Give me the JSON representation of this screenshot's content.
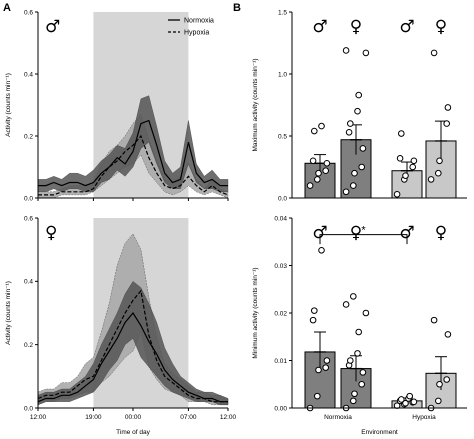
{
  "panel_labels": [
    "A",
    "B"
  ],
  "chart_data": [
    {
      "id": "A-top",
      "type": "line",
      "sex": "♂",
      "xlabel": "",
      "ylabel": "Activity (counts min⁻¹)",
      "xlim": [
        0,
        24
      ],
      "ylim": [
        0,
        0.6
      ],
      "yticks": [
        "0.0",
        "0.2",
        "0.4",
        "0.6"
      ],
      "xticks": [],
      "shaded_period": [
        7,
        19
      ],
      "legend": [
        "Normoxia",
        "Hypoxia"
      ],
      "legend_position": "top-right",
      "x": [
        0,
        1,
        2,
        3,
        4,
        5,
        6,
        7,
        8,
        9,
        10,
        11,
        12,
        13,
        14,
        15,
        16,
        17,
        18,
        19,
        20,
        21,
        22,
        23,
        24
      ],
      "series": [
        {
          "name": "Normoxia",
          "values": [
            0.04,
            0.04,
            0.05,
            0.04,
            0.05,
            0.05,
            0.04,
            0.05,
            0.08,
            0.1,
            0.13,
            0.11,
            0.15,
            0.24,
            0.25,
            0.17,
            0.08,
            0.05,
            0.06,
            0.18,
            0.08,
            0.05,
            0.06,
            0.04,
            0.04
          ],
          "upper": [
            0.06,
            0.06,
            0.07,
            0.06,
            0.08,
            0.08,
            0.07,
            0.09,
            0.12,
            0.14,
            0.17,
            0.16,
            0.21,
            0.32,
            0.33,
            0.23,
            0.12,
            0.08,
            0.1,
            0.25,
            0.11,
            0.07,
            0.09,
            0.06,
            0.06
          ],
          "lower": [
            0.02,
            0.02,
            0.03,
            0.02,
            0.03,
            0.03,
            0.02,
            0.02,
            0.05,
            0.06,
            0.09,
            0.07,
            0.1,
            0.16,
            0.18,
            0.11,
            0.05,
            0.03,
            0.03,
            0.11,
            0.05,
            0.03,
            0.03,
            0.02,
            0.02
          ]
        },
        {
          "name": "Hypoxia",
          "values": [
            0.01,
            0.01,
            0.01,
            0.02,
            0.02,
            0.02,
            0.02,
            0.03,
            0.07,
            0.1,
            0.12,
            0.15,
            0.17,
            0.2,
            0.13,
            0.08,
            0.04,
            0.03,
            0.04,
            0.07,
            0.04,
            0.02,
            0.04,
            0.02,
            0.01
          ],
          "upper": [
            0.02,
            0.02,
            0.02,
            0.03,
            0.04,
            0.04,
            0.04,
            0.05,
            0.11,
            0.15,
            0.17,
            0.2,
            0.24,
            0.27,
            0.19,
            0.12,
            0.06,
            0.05,
            0.07,
            0.11,
            0.06,
            0.03,
            0.06,
            0.03,
            0.02
          ],
          "lower": [
            0.0,
            0.0,
            0.0,
            0.01,
            0.01,
            0.01,
            0.01,
            0.02,
            0.04,
            0.06,
            0.08,
            0.1,
            0.11,
            0.14,
            0.08,
            0.05,
            0.02,
            0.01,
            0.02,
            0.04,
            0.02,
            0.01,
            0.02,
            0.01,
            0.0
          ]
        }
      ]
    },
    {
      "id": "A-bottom",
      "type": "line",
      "sex": "♀",
      "xlabel": "Time of day",
      "ylabel": "Activity (counts min⁻¹)",
      "xlim": [
        0,
        24
      ],
      "ylim": [
        0,
        0.6
      ],
      "yticks": [
        "0.0",
        "0.2",
        "0.4",
        "0.6"
      ],
      "xticks": [
        "12:00",
        "19:00",
        "00:00",
        "07:00",
        "12:00"
      ],
      "xtick_positions": [
        0,
        7,
        12,
        19,
        24
      ],
      "shaded_period": [
        7,
        19
      ],
      "x": [
        0,
        1,
        2,
        3,
        4,
        5,
        6,
        7,
        8,
        9,
        10,
        11,
        12,
        13,
        14,
        15,
        16,
        17,
        18,
        19,
        20,
        21,
        22,
        23,
        24
      ],
      "series": [
        {
          "name": "Normoxia",
          "values": [
            0.02,
            0.03,
            0.03,
            0.04,
            0.04,
            0.05,
            0.07,
            0.09,
            0.14,
            0.18,
            0.22,
            0.27,
            0.3,
            0.26,
            0.21,
            0.17,
            0.12,
            0.09,
            0.07,
            0.05,
            0.04,
            0.03,
            0.03,
            0.02,
            0.02
          ],
          "upper": [
            0.04,
            0.05,
            0.05,
            0.06,
            0.06,
            0.08,
            0.1,
            0.14,
            0.2,
            0.25,
            0.3,
            0.36,
            0.4,
            0.38,
            0.33,
            0.27,
            0.19,
            0.14,
            0.1,
            0.08,
            0.06,
            0.05,
            0.05,
            0.04,
            0.03
          ],
          "lower": [
            0.01,
            0.02,
            0.02,
            0.02,
            0.02,
            0.03,
            0.04,
            0.05,
            0.08,
            0.12,
            0.15,
            0.2,
            0.22,
            0.16,
            0.13,
            0.1,
            0.07,
            0.05,
            0.04,
            0.03,
            0.02,
            0.02,
            0.02,
            0.01,
            0.01
          ]
        },
        {
          "name": "Hypoxia",
          "values": [
            0.03,
            0.04,
            0.04,
            0.05,
            0.05,
            0.07,
            0.09,
            0.1,
            0.15,
            0.2,
            0.25,
            0.3,
            0.34,
            0.37,
            0.23,
            0.15,
            0.1,
            0.08,
            0.06,
            0.04,
            0.03,
            0.03,
            0.02,
            0.02,
            0.02
          ],
          "upper": [
            0.05,
            0.06,
            0.06,
            0.08,
            0.08,
            0.1,
            0.14,
            0.16,
            0.24,
            0.33,
            0.45,
            0.52,
            0.55,
            0.5,
            0.35,
            0.22,
            0.14,
            0.11,
            0.09,
            0.07,
            0.05,
            0.05,
            0.04,
            0.04,
            0.03
          ],
          "lower": [
            0.01,
            0.02,
            0.02,
            0.03,
            0.03,
            0.04,
            0.05,
            0.05,
            0.08,
            0.1,
            0.13,
            0.16,
            0.18,
            0.24,
            0.13,
            0.09,
            0.06,
            0.05,
            0.04,
            0.02,
            0.02,
            0.02,
            0.01,
            0.01,
            0.01
          ]
        }
      ]
    },
    {
      "id": "B-top",
      "type": "bar",
      "xlabel": "",
      "ylabel": "Maximum activity (counts min⁻¹)",
      "ylim": [
        0,
        1.5
      ],
      "yticks": [
        "0.0",
        "0.5",
        "1.0",
        "1.5"
      ],
      "sex_labels": [
        "♂",
        "♀",
        "♂",
        "♀"
      ],
      "bar_colors": [
        "#7f7f7f",
        "#7f7f7f",
        "#c8c8c8",
        "#c8c8c8"
      ],
      "values": [
        0.28,
        0.47,
        0.22,
        0.46
      ],
      "sem": [
        0.07,
        0.12,
        0.07,
        0.16
      ],
      "points": [
        [
          0.1,
          0.15,
          0.2,
          0.22,
          0.28,
          0.3,
          0.54,
          0.58
        ],
        [
          0.05,
          0.1,
          0.2,
          0.25,
          0.4,
          0.53,
          0.6,
          0.7,
          0.83,
          1.17,
          1.19
        ],
        [
          0.03,
          0.15,
          0.18,
          0.25,
          0.3,
          0.32,
          0.52
        ],
        [
          0.15,
          0.2,
          0.3,
          0.6,
          0.73,
          1.17
        ]
      ]
    },
    {
      "id": "B-bottom",
      "type": "bar",
      "xlabel": "Environment",
      "ylabel": "Minimum activity (counts min⁻¹)",
      "ylim": [
        0,
        0.04
      ],
      "yticks": [
        "0.00",
        "0.01",
        "0.02",
        "0.03",
        "0.04"
      ],
      "group_labels": [
        "Normoxia",
        "Hypoxia"
      ],
      "sex_labels": [
        "♂",
        "♀",
        "♂",
        "♀"
      ],
      "bar_colors": [
        "#7f7f7f",
        "#7f7f7f",
        "#c8c8c8",
        "#c8c8c8"
      ],
      "values": [
        0.0118,
        0.0083,
        0.0015,
        0.0073
      ],
      "sem": [
        0.0042,
        0.0027,
        0.0006,
        0.0035
      ],
      "significance": "*",
      "points": [
        [
          0.0,
          0.0025,
          0.008,
          0.0085,
          0.01,
          0.0185,
          0.0205,
          0.0332
        ],
        [
          0.0,
          0.0015,
          0.003,
          0.005,
          0.0075,
          0.009,
          0.01,
          0.0115,
          0.016,
          0.02,
          0.0218,
          0.0235
        ],
        [
          0.0005,
          0.0008,
          0.001,
          0.0012,
          0.0013,
          0.0015,
          0.0018,
          0.002,
          0.0025
        ],
        [
          0.0,
          0.0015,
          0.005,
          0.006,
          0.0155,
          0.0185
        ]
      ]
    }
  ]
}
